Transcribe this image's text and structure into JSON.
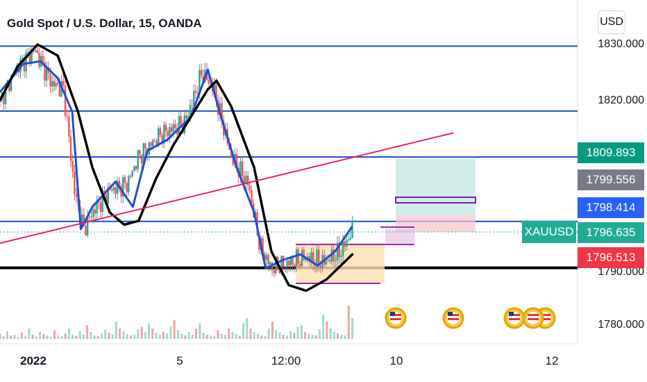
{
  "chart_data": {
    "type": "candlestick",
    "symbol_title": "Gold Spot / U.S. Dollar, 15, OANDA",
    "currency": "USD",
    "y_ticks": [
      "1830.000",
      "1820.000",
      "1790.000",
      "1780.000"
    ],
    "x_ticks": [
      "2022",
      "5",
      "12:00",
      "10",
      "12"
    ],
    "ylim": [
      1776,
      1838
    ],
    "horizontal_levels": [
      1829.7,
      1818.1,
      1809.9,
      1798.4,
      1790.1
    ],
    "trendline": {
      "from": [
        0,
        1794.5
      ],
      "to": [
        0.785,
        1814.2
      ]
    },
    "price_tags": [
      {
        "label": "1809.893",
        "value": 1809.893,
        "color": "#089981"
      },
      {
        "label": "1799.556",
        "value": 1799.556,
        "color": "#787b86"
      },
      {
        "label": "1798.414",
        "value": 1798.414,
        "color": "#2962ff"
      },
      {
        "label": "1796.635",
        "value": 1796.635,
        "color": "#22ab94"
      },
      {
        "label": "1796.513",
        "value": 1796.513,
        "color": "#f23645"
      }
    ],
    "symbol_tag": "XAUUSD",
    "price_path": [
      [
        0.0,
        1820.0
      ],
      [
        0.03,
        1826.0
      ],
      [
        0.06,
        1829.0
      ],
      [
        0.09,
        1823.0
      ],
      [
        0.11,
        1822.0
      ],
      [
        0.13,
        1803.0
      ],
      [
        0.145,
        1797.0
      ],
      [
        0.16,
        1800.0
      ],
      [
        0.19,
        1804.0
      ],
      [
        0.22,
        1805.0
      ],
      [
        0.24,
        1810.0
      ],
      [
        0.28,
        1814.0
      ],
      [
        0.32,
        1816.0
      ],
      [
        0.35,
        1825.0
      ],
      [
        0.37,
        1822.0
      ],
      [
        0.4,
        1810.0
      ],
      [
        0.43,
        1805.0
      ],
      [
        0.45,
        1794.0
      ],
      [
        0.47,
        1790.0
      ],
      [
        0.5,
        1791.0
      ],
      [
        0.53,
        1792.0
      ],
      [
        0.56,
        1791.0
      ],
      [
        0.59,
        1793.0
      ],
      [
        0.61,
        1796.6
      ]
    ],
    "blue_ma": [
      [
        0.0,
        1821.5
      ],
      [
        0.04,
        1826.5
      ],
      [
        0.07,
        1827.0
      ],
      [
        0.1,
        1824.0
      ],
      [
        0.125,
        1818.0
      ],
      [
        0.14,
        1797.0
      ],
      [
        0.16,
        1801.0
      ],
      [
        0.2,
        1805.5
      ],
      [
        0.23,
        1801.0
      ],
      [
        0.255,
        1811.0
      ],
      [
        0.29,
        1813.0
      ],
      [
        0.33,
        1817.0
      ],
      [
        0.36,
        1825.5
      ],
      [
        0.38,
        1818.0
      ],
      [
        0.41,
        1808.0
      ],
      [
        0.44,
        1800.0
      ],
      [
        0.46,
        1790.0
      ],
      [
        0.49,
        1791.5
      ],
      [
        0.52,
        1792.5
      ],
      [
        0.55,
        1790.5
      ],
      [
        0.58,
        1793.0
      ],
      [
        0.61,
        1797.5
      ]
    ],
    "black_curve": [
      [
        0.0,
        1820.0
      ],
      [
        0.03,
        1826.0
      ],
      [
        0.065,
        1830.0
      ],
      [
        0.1,
        1828.0
      ],
      [
        0.135,
        1818.0
      ],
      [
        0.16,
        1808.0
      ],
      [
        0.19,
        1800.0
      ],
      [
        0.215,
        1797.8
      ],
      [
        0.24,
        1798.5
      ],
      [
        0.27,
        1806.0
      ],
      [
        0.3,
        1812.0
      ],
      [
        0.33,
        1817.0
      ],
      [
        0.36,
        1822.0
      ],
      [
        0.375,
        1823.5
      ],
      [
        0.4,
        1819.0
      ],
      [
        0.44,
        1808.0
      ],
      [
        0.47,
        1793.0
      ],
      [
        0.5,
        1787.0
      ],
      [
        0.53,
        1786.0
      ],
      [
        0.565,
        1788.0
      ],
      [
        0.61,
        1792.5
      ]
    ],
    "volume_heights": [
      0.15,
      0.08,
      0.22,
      0.1,
      0.12,
      0.05,
      0.18,
      0.09,
      0.3,
      0.12,
      0.07,
      0.2,
      0.14,
      0.1,
      0.06,
      0.25,
      0.11,
      0.08,
      0.16,
      0.3,
      0.12,
      0.09,
      0.22,
      0.13,
      0.4,
      0.2,
      0.1,
      0.08,
      0.15,
      0.26,
      0.18,
      0.12,
      0.5,
      0.3,
      0.22,
      0.14,
      0.1,
      0.12,
      0.28,
      0.35,
      0.2,
      0.45,
      0.3,
      0.18,
      0.12,
      0.2,
      0.16,
      0.35,
      0.55,
      0.25,
      0.15,
      0.1,
      0.2,
      0.12,
      0.3,
      0.45,
      0.18,
      0.12,
      0.1,
      0.08,
      0.25,
      0.15,
      0.12,
      0.3,
      0.2,
      0.14,
      0.1,
      0.45,
      0.6,
      0.3,
      0.2,
      0.15,
      0.1,
      0.08,
      0.3,
      0.5,
      0.25,
      0.18,
      0.12,
      0.1,
      0.22,
      0.18,
      0.35,
      0.4,
      0.2,
      0.15,
      0.12,
      0.1,
      0.28,
      0.7,
      0.5,
      0.3,
      0.2,
      0.16,
      0.12,
      0.1,
      0.95,
      0.6
    ]
  }
}
